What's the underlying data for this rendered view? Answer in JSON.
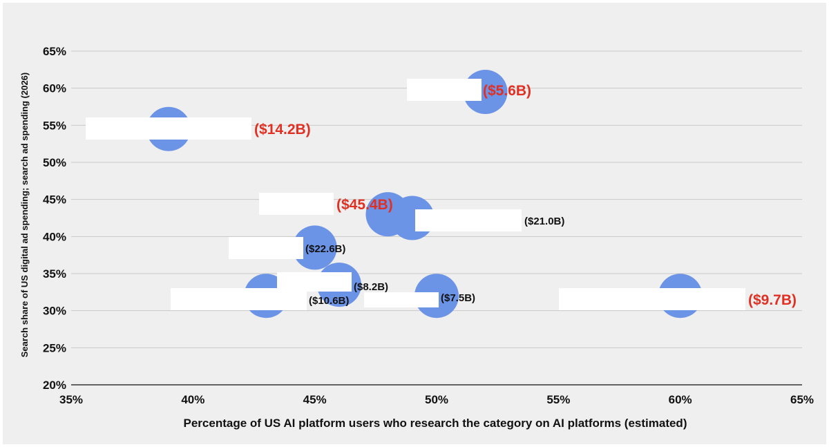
{
  "chart_data": {
    "type": "scatter",
    "title": "",
    "xlabel": "Percentage of US AI platform users who research the category on AI platforms (estimated)",
    "ylabel": "Search share of US digital ad spending; search ad spending (2026)",
    "xlim": [
      35,
      65
    ],
    "ylim": [
      20,
      65
    ],
    "x_ticks": [
      "35%",
      "40%",
      "45%",
      "50%",
      "55%",
      "60%",
      "65%"
    ],
    "y_ticks": [
      "20%",
      "25%",
      "30%",
      "35%",
      "40%",
      "45%",
      "50%",
      "55%",
      "60%",
      "65%"
    ],
    "grid": true,
    "legend": "none",
    "point_color": "#6b93e6",
    "highlight_color": "#e03024",
    "label_color": "#111111",
    "points": [
      {
        "x": 39,
        "y": 54.5,
        "label": "($14.2B)",
        "highlight": true
      },
      {
        "x": 52,
        "y": 59.5,
        "label": "($5.6B)",
        "highlight": true
      },
      {
        "x": 48,
        "y": 43,
        "label": "($45.4B)",
        "highlight": true
      },
      {
        "x": 49,
        "y": 42.5,
        "label": "($21.0B)",
        "highlight": false
      },
      {
        "x": 45,
        "y": 38.5,
        "label": "($22.6B)",
        "highlight": false
      },
      {
        "x": 46,
        "y": 33.5,
        "label": "($8.2B)",
        "highlight": false
      },
      {
        "x": 43,
        "y": 32,
        "label": "($10.6B)",
        "highlight": false
      },
      {
        "x": 50,
        "y": 32,
        "label": "($7.5B)",
        "highlight": false
      },
      {
        "x": 60,
        "y": 32,
        "label": "($9.7B)",
        "highlight": true
      }
    ]
  }
}
